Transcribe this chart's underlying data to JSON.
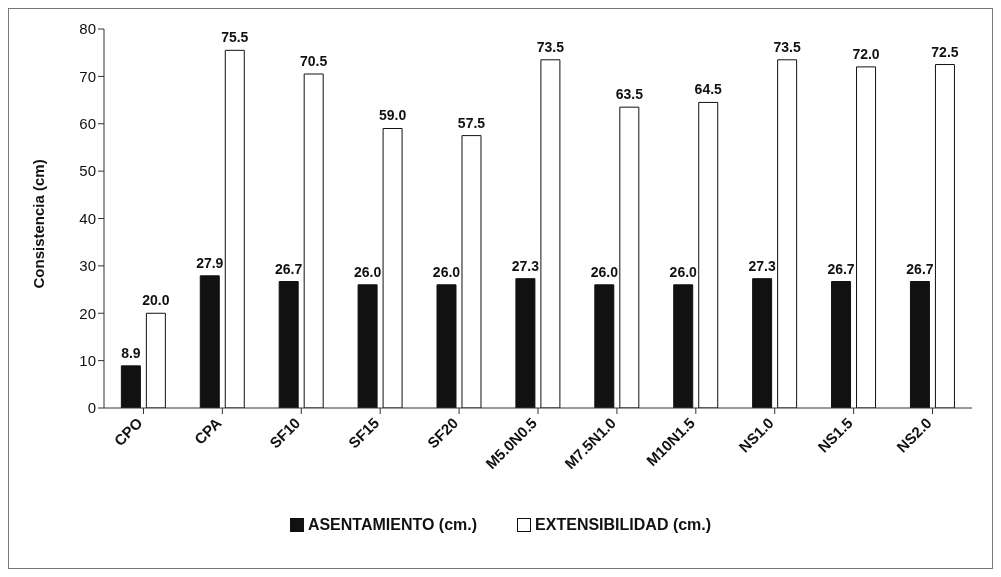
{
  "chart_data": {
    "type": "bar",
    "ylabel": "Consistencia (cm)",
    "categories": [
      "CPO",
      "CPA",
      "SF10",
      "SF15",
      "SF20",
      "M5.0N0.5",
      "M7.5N1.0",
      "M10N1.5",
      "NS1.0",
      "NS1.5",
      "NS2.0"
    ],
    "series": [
      {
        "name": "ASENTAMIENTO (cm.)",
        "color": "#111111",
        "values": [
          8.9,
          27.9,
          26.7,
          26.0,
          26.0,
          27.3,
          26.0,
          26.0,
          27.3,
          26.7,
          26.7
        ],
        "value_labels": [
          "8.9",
          "27.9",
          "26.7",
          "26.0",
          "26.0",
          "27.3",
          "26.0",
          "26.0",
          "27.3",
          "26.7",
          "26.7"
        ]
      },
      {
        "name": "EXTENSIBILIDAD (cm.)",
        "color": "#ffffff",
        "values": [
          20.0,
          75.5,
          70.5,
          59.0,
          57.5,
          73.5,
          63.5,
          64.5,
          73.5,
          72.0,
          72.5
        ],
        "value_labels": [
          "20.0",
          "75.5",
          "70.5",
          "59.0",
          "57.5",
          "73.5",
          "63.5",
          "64.5",
          "73.5",
          "72.0",
          "72.5"
        ]
      }
    ],
    "ylim": [
      0,
      80
    ],
    "yticks": [
      0,
      10,
      20,
      30,
      40,
      50,
      60,
      70,
      80
    ],
    "grid": false,
    "legend": "bottom"
  }
}
